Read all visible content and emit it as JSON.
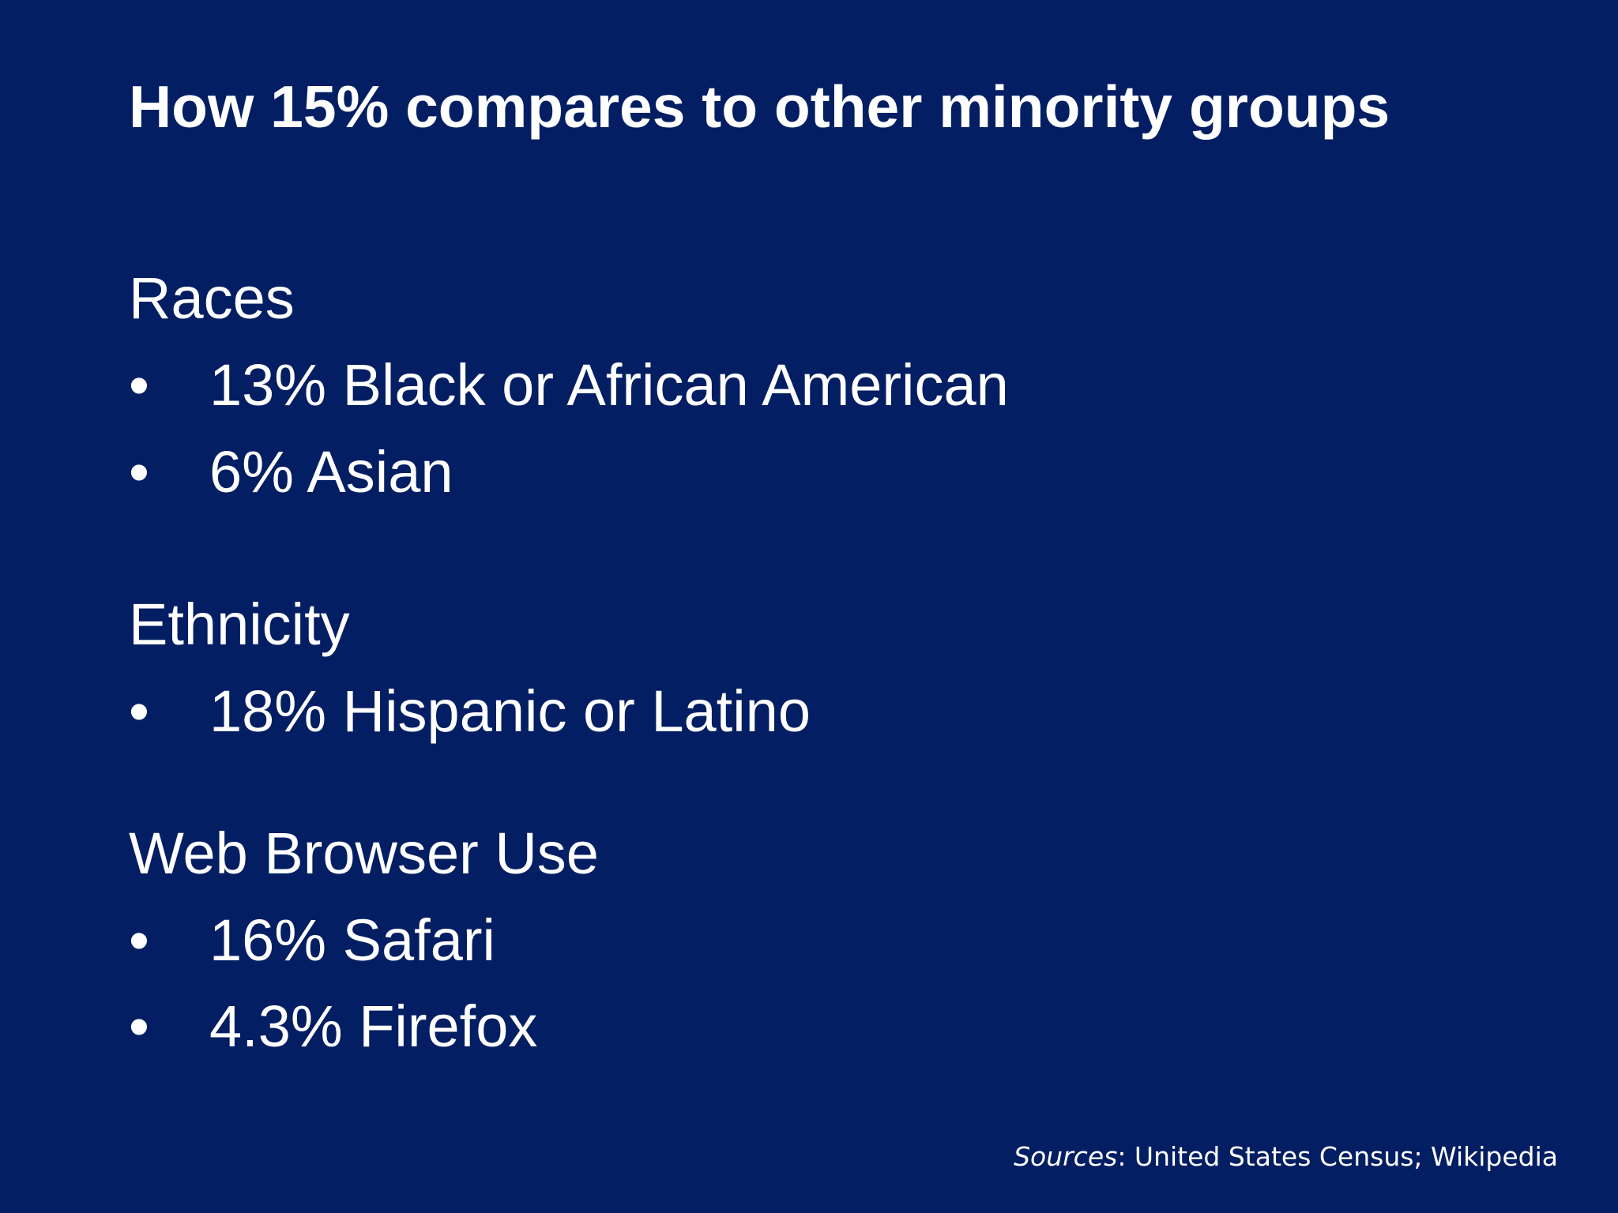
{
  "title": "How 15% compares to other minority groups",
  "sections": [
    {
      "heading": "Races",
      "items": [
        {
          "bullet": "•",
          "text": "13% Black or African American"
        },
        {
          "bullet": "•",
          "text": "6% Asian"
        }
      ]
    },
    {
      "heading": "Ethnicity",
      "items": [
        {
          "bullet": "•",
          "text": "18% Hispanic or Latino"
        }
      ]
    },
    {
      "heading": "Web Browser Use",
      "items": [
        {
          "bullet": "•",
          "text": "16% Safari"
        },
        {
          "bullet": "•",
          "text": "4.3% Firefox"
        }
      ]
    }
  ],
  "sources": {
    "label": "Sources",
    "text": ": United States Census; Wikipedia"
  },
  "colors": {
    "background": "#031e62",
    "text": "#ffffff"
  }
}
